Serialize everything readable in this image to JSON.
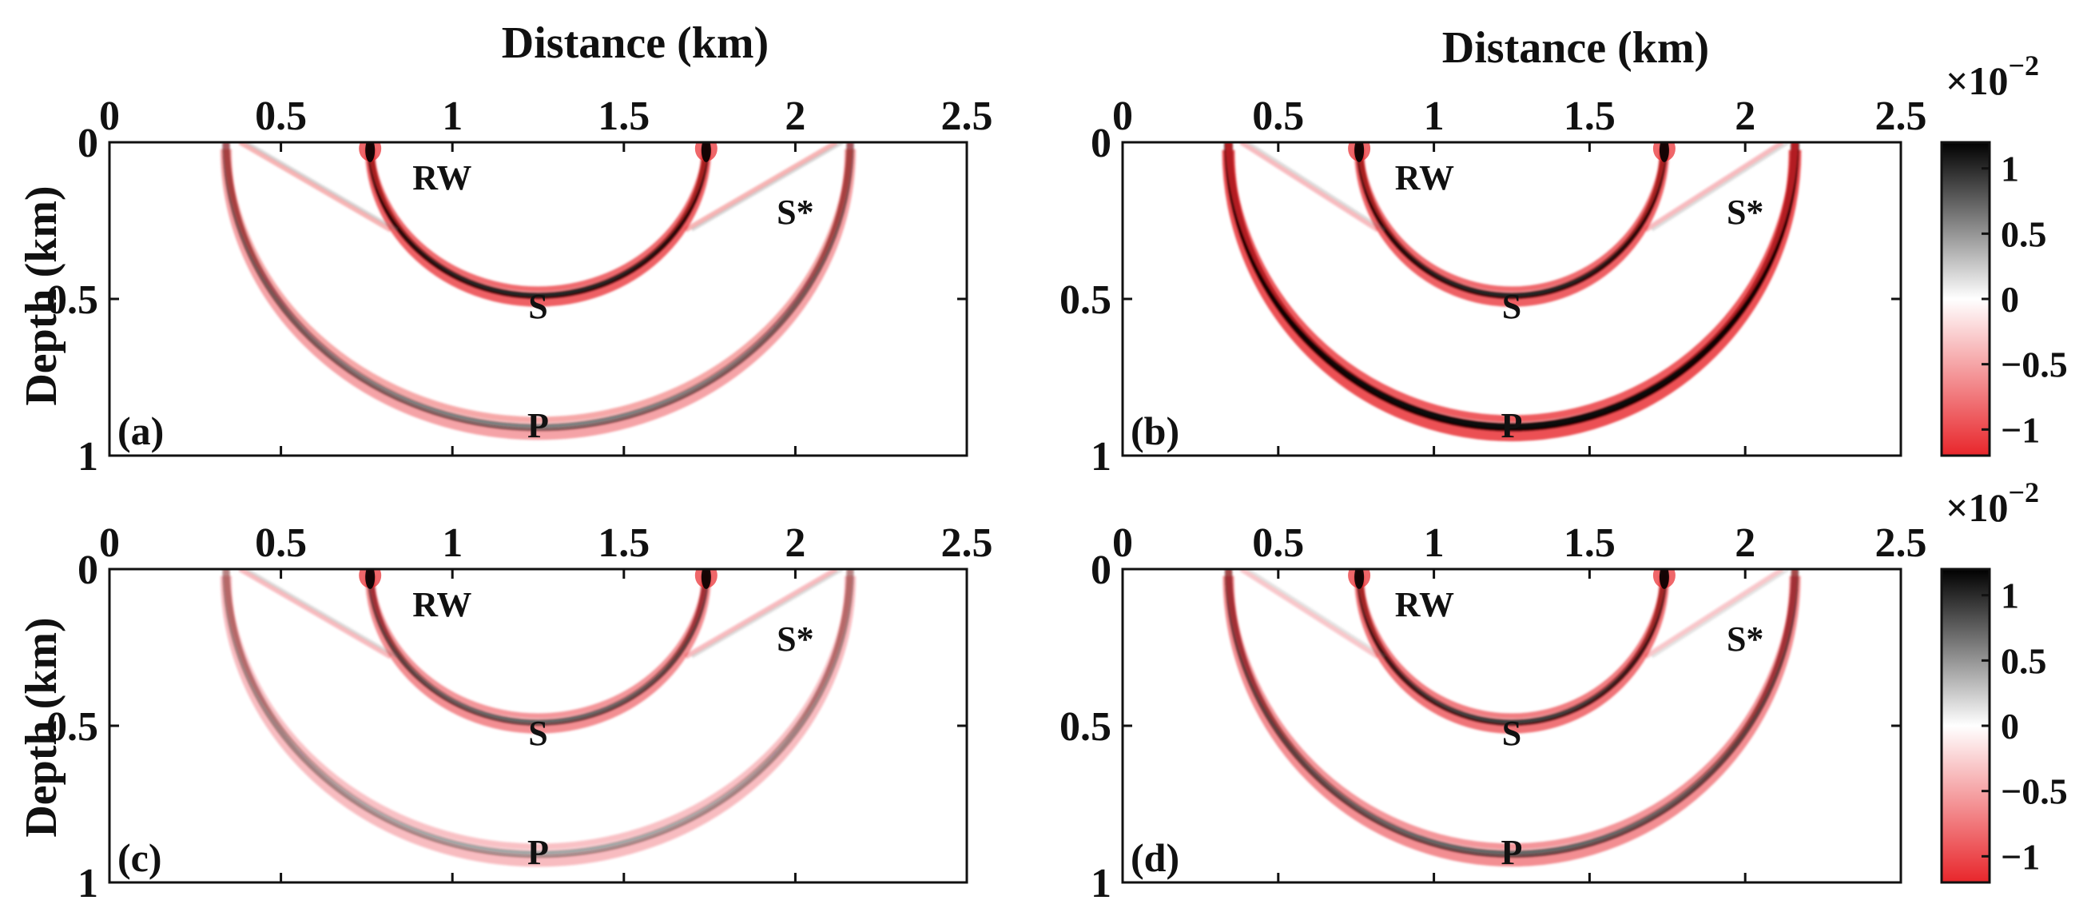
{
  "figure": {
    "xlabel": "Distance (km)",
    "ylabel": "Depth (km)",
    "colorbar_exponent_base": "×10",
    "colorbar_exponent_power": "−2"
  },
  "chart_data": [
    {
      "type": "heatmap",
      "panel_label": "(a)",
      "xlim": [
        0,
        2.5
      ],
      "ylim": [
        0,
        1
      ],
      "xticks": [
        "0",
        "0.5",
        "1",
        "1.5",
        "2",
        "2.5"
      ],
      "yticks": [
        "0",
        "0.5",
        "1"
      ],
      "wave_labels": [
        {
          "text": "RW",
          "x": 0.97,
          "y": 0.11
        },
        {
          "text": "S*",
          "x": 2.0,
          "y": 0.22
        },
        {
          "text": "S",
          "x": 1.25,
          "y": 0.52
        },
        {
          "text": "P",
          "x": 1.25,
          "y": 0.9
        }
      ],
      "wavefronts": [
        {
          "name": "P",
          "cx": 1.25,
          "radius": 0.91,
          "intensity": 0.5,
          "width": 0.04
        },
        {
          "name": "S",
          "cx": 1.25,
          "radius": 0.49,
          "intensity": 0.85,
          "width": 0.035
        },
        {
          "name": "S*",
          "x0": 0.38,
          "x1": 0.82,
          "intensity": 0.35
        },
        {
          "name": "S*",
          "x0": 2.12,
          "x1": 1.68,
          "intensity": 0.35
        }
      ],
      "xlabel_shown": true,
      "ylabel_shown": true,
      "colorbar_shown": false
    },
    {
      "type": "heatmap",
      "panel_label": "(b)",
      "xlim": [
        0,
        2.5
      ],
      "ylim": [
        0,
        1
      ],
      "xticks": [
        "0",
        "0.5",
        "1",
        "1.5",
        "2",
        "2.5"
      ],
      "yticks": [
        "0",
        "0.5",
        "1"
      ],
      "wave_labels": [
        {
          "text": "RW",
          "x": 0.97,
          "y": 0.11
        },
        {
          "text": "S*",
          "x": 2.0,
          "y": 0.22
        },
        {
          "text": "S",
          "x": 1.25,
          "y": 0.52
        },
        {
          "text": "P",
          "x": 1.25,
          "y": 0.9
        }
      ],
      "wavefronts": [
        {
          "name": "P",
          "cx": 1.25,
          "radius": 0.91,
          "intensity": 0.95,
          "width": 0.045
        },
        {
          "name": "S",
          "cx": 1.25,
          "radius": 0.49,
          "intensity": 0.85,
          "width": 0.035
        },
        {
          "name": "S*",
          "x0": 0.38,
          "x1": 0.82,
          "intensity": 0.3
        },
        {
          "name": "S*",
          "x0": 2.12,
          "x1": 1.68,
          "intensity": 0.3
        }
      ],
      "xlabel_shown": true,
      "ylabel_shown": false,
      "colorbar_shown": true
    },
    {
      "type": "heatmap",
      "panel_label": "(c)",
      "xlim": [
        0,
        2.5
      ],
      "ylim": [
        0,
        1
      ],
      "xticks": [
        "0",
        "0.5",
        "1",
        "1.5",
        "2",
        "2.5"
      ],
      "yticks": [
        "0",
        "0.5",
        "1"
      ],
      "wave_labels": [
        {
          "text": "RW",
          "x": 0.97,
          "y": 0.11
        },
        {
          "text": "S*",
          "x": 2.0,
          "y": 0.22
        },
        {
          "text": "S",
          "x": 1.25,
          "y": 0.52
        },
        {
          "text": "P",
          "x": 1.25,
          "y": 0.9
        }
      ],
      "wavefronts": [
        {
          "name": "P",
          "cx": 1.25,
          "radius": 0.91,
          "intensity": 0.35,
          "width": 0.04
        },
        {
          "name": "S",
          "cx": 1.25,
          "radius": 0.49,
          "intensity": 0.6,
          "width": 0.035
        },
        {
          "name": "S*",
          "x0": 0.38,
          "x1": 0.82,
          "intensity": 0.3
        },
        {
          "name": "S*",
          "x0": 2.12,
          "x1": 1.68,
          "intensity": 0.3
        }
      ],
      "xlabel_shown": false,
      "ylabel_shown": true,
      "colorbar_shown": false
    },
    {
      "type": "heatmap",
      "panel_label": "(d)",
      "xlim": [
        0,
        2.5
      ],
      "ylim": [
        0,
        1
      ],
      "xticks": [
        "0",
        "0.5",
        "1",
        "1.5",
        "2",
        "2.5"
      ],
      "yticks": [
        "0",
        "0.5",
        "1"
      ],
      "wave_labels": [
        {
          "text": "RW",
          "x": 0.97,
          "y": 0.11
        },
        {
          "text": "S*",
          "x": 2.0,
          "y": 0.22
        },
        {
          "text": "S",
          "x": 1.25,
          "y": 0.52
        },
        {
          "text": "P",
          "x": 1.25,
          "y": 0.9
        }
      ],
      "wavefronts": [
        {
          "name": "P",
          "cx": 1.25,
          "radius": 0.91,
          "intensity": 0.6,
          "width": 0.04
        },
        {
          "name": "S",
          "cx": 1.25,
          "radius": 0.49,
          "intensity": 0.75,
          "width": 0.035
        },
        {
          "name": "S*",
          "x0": 0.38,
          "x1": 0.82,
          "intensity": 0.25
        },
        {
          "name": "S*",
          "x0": 2.12,
          "x1": 1.68,
          "intensity": 0.25
        }
      ],
      "xlabel_shown": false,
      "ylabel_shown": false,
      "colorbar_shown": true
    }
  ],
  "colorbar": {
    "ticks": [
      "1",
      "0.5",
      "0",
      "−0.5",
      "−1"
    ],
    "tick_values": [
      1,
      0.5,
      0,
      -0.5,
      -1
    ],
    "range": [
      -1.2,
      1.2
    ],
    "colors": {
      "positive": "#000000",
      "zero": "#ffffff",
      "negative": "#e8262b"
    }
  }
}
